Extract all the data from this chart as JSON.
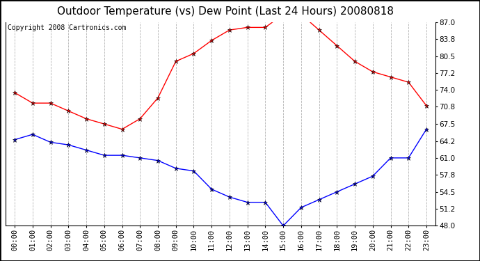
{
  "title": "Outdoor Temperature (vs) Dew Point (Last 24 Hours) 20080818",
  "copyright": "Copyright 2008 Cartronics.com",
  "hours": [
    "00:00",
    "01:00",
    "02:00",
    "03:00",
    "04:00",
    "05:00",
    "06:00",
    "07:00",
    "08:00",
    "09:00",
    "10:00",
    "11:00",
    "12:00",
    "13:00",
    "14:00",
    "15:00",
    "16:00",
    "17:00",
    "18:00",
    "19:00",
    "20:00",
    "21:00",
    "22:00",
    "23:00"
  ],
  "temp": [
    73.5,
    71.5,
    71.5,
    70.0,
    68.5,
    67.5,
    66.5,
    68.5,
    72.5,
    79.5,
    81.0,
    83.5,
    85.5,
    86.0,
    86.0,
    88.5,
    88.5,
    85.5,
    82.5,
    79.5,
    77.5,
    76.5,
    75.5,
    71.0
  ],
  "dewpoint": [
    64.5,
    65.5,
    64.0,
    63.5,
    62.5,
    61.5,
    61.5,
    61.0,
    60.5,
    59.0,
    58.5,
    55.0,
    53.5,
    52.5,
    52.5,
    48.0,
    51.5,
    53.0,
    54.5,
    56.0,
    57.5,
    61.0,
    61.0,
    66.5
  ],
  "ylim": [
    48.0,
    87.0
  ],
  "yticks": [
    48.0,
    51.2,
    54.5,
    57.8,
    61.0,
    64.2,
    67.5,
    70.8,
    74.0,
    77.2,
    80.5,
    83.8,
    87.0
  ],
  "temp_color": "#ff0000",
  "dew_color": "#0000ff",
  "bg_color": "#ffffff",
  "grid_color": "#aaaaaa",
  "title_fontsize": 11,
  "tick_fontsize": 7.5,
  "copyright_fontsize": 7
}
